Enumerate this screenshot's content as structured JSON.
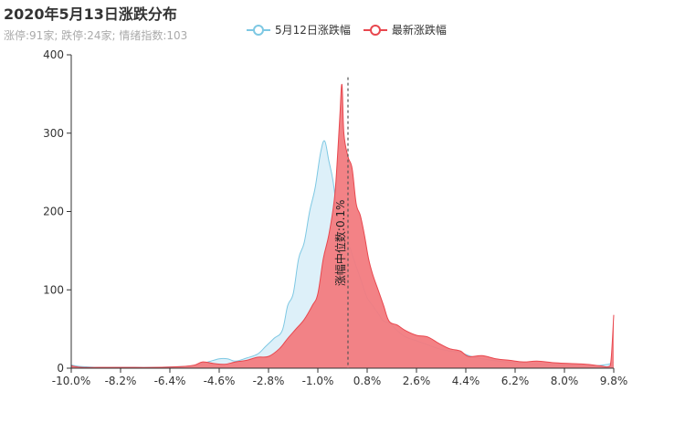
{
  "title": "2020年5月13日涨跌分布",
  "subtitle": "涨停:91家; 跌停:24家; 情绪指数:103",
  "colors": {
    "prev": "#7ec8e3",
    "prev_fill": "#d9eef8",
    "latest": "#e8474e",
    "latest_fill": "#f27b80",
    "axis": "#333333",
    "median_line": "#555555"
  },
  "chart_data": {
    "type": "area",
    "title": "2020年5月13日涨跌分布",
    "xlabel": "",
    "ylabel": "",
    "xlim": [
      -10.0,
      9.8
    ],
    "ylim": [
      0,
      400
    ],
    "x_ticks": [
      "-10.0%",
      "-8.2%",
      "-6.4%",
      "-4.6%",
      "-2.8%",
      "-1.0%",
      "0.8%",
      "2.6%",
      "4.4%",
      "6.2%",
      "8.0%",
      "9.8%"
    ],
    "y_ticks": [
      0,
      100,
      200,
      300,
      400
    ],
    "grid": false,
    "legend": "top",
    "series": [
      {
        "name": "5月12日涨跌幅",
        "points": [
          [
            -10.0,
            4
          ],
          [
            -9.6,
            2
          ],
          [
            -9.0,
            1
          ],
          [
            -8.0,
            1
          ],
          [
            -7.0,
            1
          ],
          [
            -6.0,
            2
          ],
          [
            -5.4,
            4
          ],
          [
            -5.0,
            8
          ],
          [
            -4.6,
            12
          ],
          [
            -4.3,
            12
          ],
          [
            -4.0,
            9
          ],
          [
            -3.6,
            13
          ],
          [
            -3.2,
            18
          ],
          [
            -2.9,
            28
          ],
          [
            -2.6,
            38
          ],
          [
            -2.3,
            48
          ],
          [
            -2.1,
            80
          ],
          [
            -1.9,
            95
          ],
          [
            -1.7,
            140
          ],
          [
            -1.5,
            160
          ],
          [
            -1.3,
            200
          ],
          [
            -1.1,
            230
          ],
          [
            -0.9,
            275
          ],
          [
            -0.75,
            290
          ],
          [
            -0.6,
            265
          ],
          [
            -0.45,
            240
          ],
          [
            -0.3,
            200
          ],
          [
            -0.15,
            170
          ],
          [
            0.0,
            150
          ],
          [
            0.15,
            155
          ],
          [
            0.3,
            140
          ],
          [
            0.45,
            125
          ],
          [
            0.6,
            110
          ],
          [
            0.8,
            90
          ],
          [
            1.0,
            80
          ],
          [
            1.2,
            70
          ],
          [
            1.4,
            60
          ],
          [
            1.6,
            58
          ],
          [
            1.9,
            48
          ],
          [
            2.2,
            40
          ],
          [
            2.6,
            35
          ],
          [
            3.0,
            30
          ],
          [
            3.4,
            25
          ],
          [
            3.8,
            22
          ],
          [
            4.2,
            20
          ],
          [
            4.6,
            15
          ],
          [
            5.0,
            12
          ],
          [
            5.6,
            9
          ],
          [
            6.2,
            7
          ],
          [
            7.0,
            5
          ],
          [
            8.0,
            4
          ],
          [
            9.0,
            3
          ],
          [
            9.6,
            5
          ],
          [
            9.8,
            8
          ]
        ]
      },
      {
        "name": "最新涨跌幅",
        "points": [
          [
            -10.0,
            3
          ],
          [
            -9.6,
            1
          ],
          [
            -9.0,
            1
          ],
          [
            -8.0,
            1
          ],
          [
            -7.0,
            1
          ],
          [
            -6.0,
            2
          ],
          [
            -5.5,
            4
          ],
          [
            -5.2,
            8
          ],
          [
            -4.8,
            6
          ],
          [
            -4.4,
            5
          ],
          [
            -4.0,
            8
          ],
          [
            -3.6,
            10
          ],
          [
            -3.2,
            14
          ],
          [
            -2.8,
            15
          ],
          [
            -2.4,
            25
          ],
          [
            -2.1,
            38
          ],
          [
            -1.8,
            50
          ],
          [
            -1.5,
            62
          ],
          [
            -1.2,
            80
          ],
          [
            -1.0,
            95
          ],
          [
            -0.8,
            140
          ],
          [
            -0.6,
            170
          ],
          [
            -0.4,
            215
          ],
          [
            -0.3,
            260
          ],
          [
            -0.2,
            320
          ],
          [
            -0.12,
            362
          ],
          [
            -0.05,
            300
          ],
          [
            0.1,
            270
          ],
          [
            0.25,
            255
          ],
          [
            0.4,
            210
          ],
          [
            0.55,
            195
          ],
          [
            0.7,
            170
          ],
          [
            0.85,
            140
          ],
          [
            1.0,
            120
          ],
          [
            1.2,
            100
          ],
          [
            1.4,
            80
          ],
          [
            1.6,
            60
          ],
          [
            1.9,
            55
          ],
          [
            2.2,
            48
          ],
          [
            2.6,
            42
          ],
          [
            3.0,
            40
          ],
          [
            3.4,
            32
          ],
          [
            3.8,
            25
          ],
          [
            4.2,
            22
          ],
          [
            4.5,
            15
          ],
          [
            5.0,
            16
          ],
          [
            5.5,
            12
          ],
          [
            6.0,
            10
          ],
          [
            6.5,
            8
          ],
          [
            7.0,
            9
          ],
          [
            7.6,
            7
          ],
          [
            8.2,
            6
          ],
          [
            8.8,
            5
          ],
          [
            9.3,
            3
          ],
          [
            9.6,
            2
          ],
          [
            9.7,
            10
          ],
          [
            9.8,
            68
          ]
        ]
      }
    ],
    "annotations": [
      {
        "type": "vertical-line",
        "x": 0.1,
        "label": "涨幅中位数:0.1%"
      }
    ]
  }
}
